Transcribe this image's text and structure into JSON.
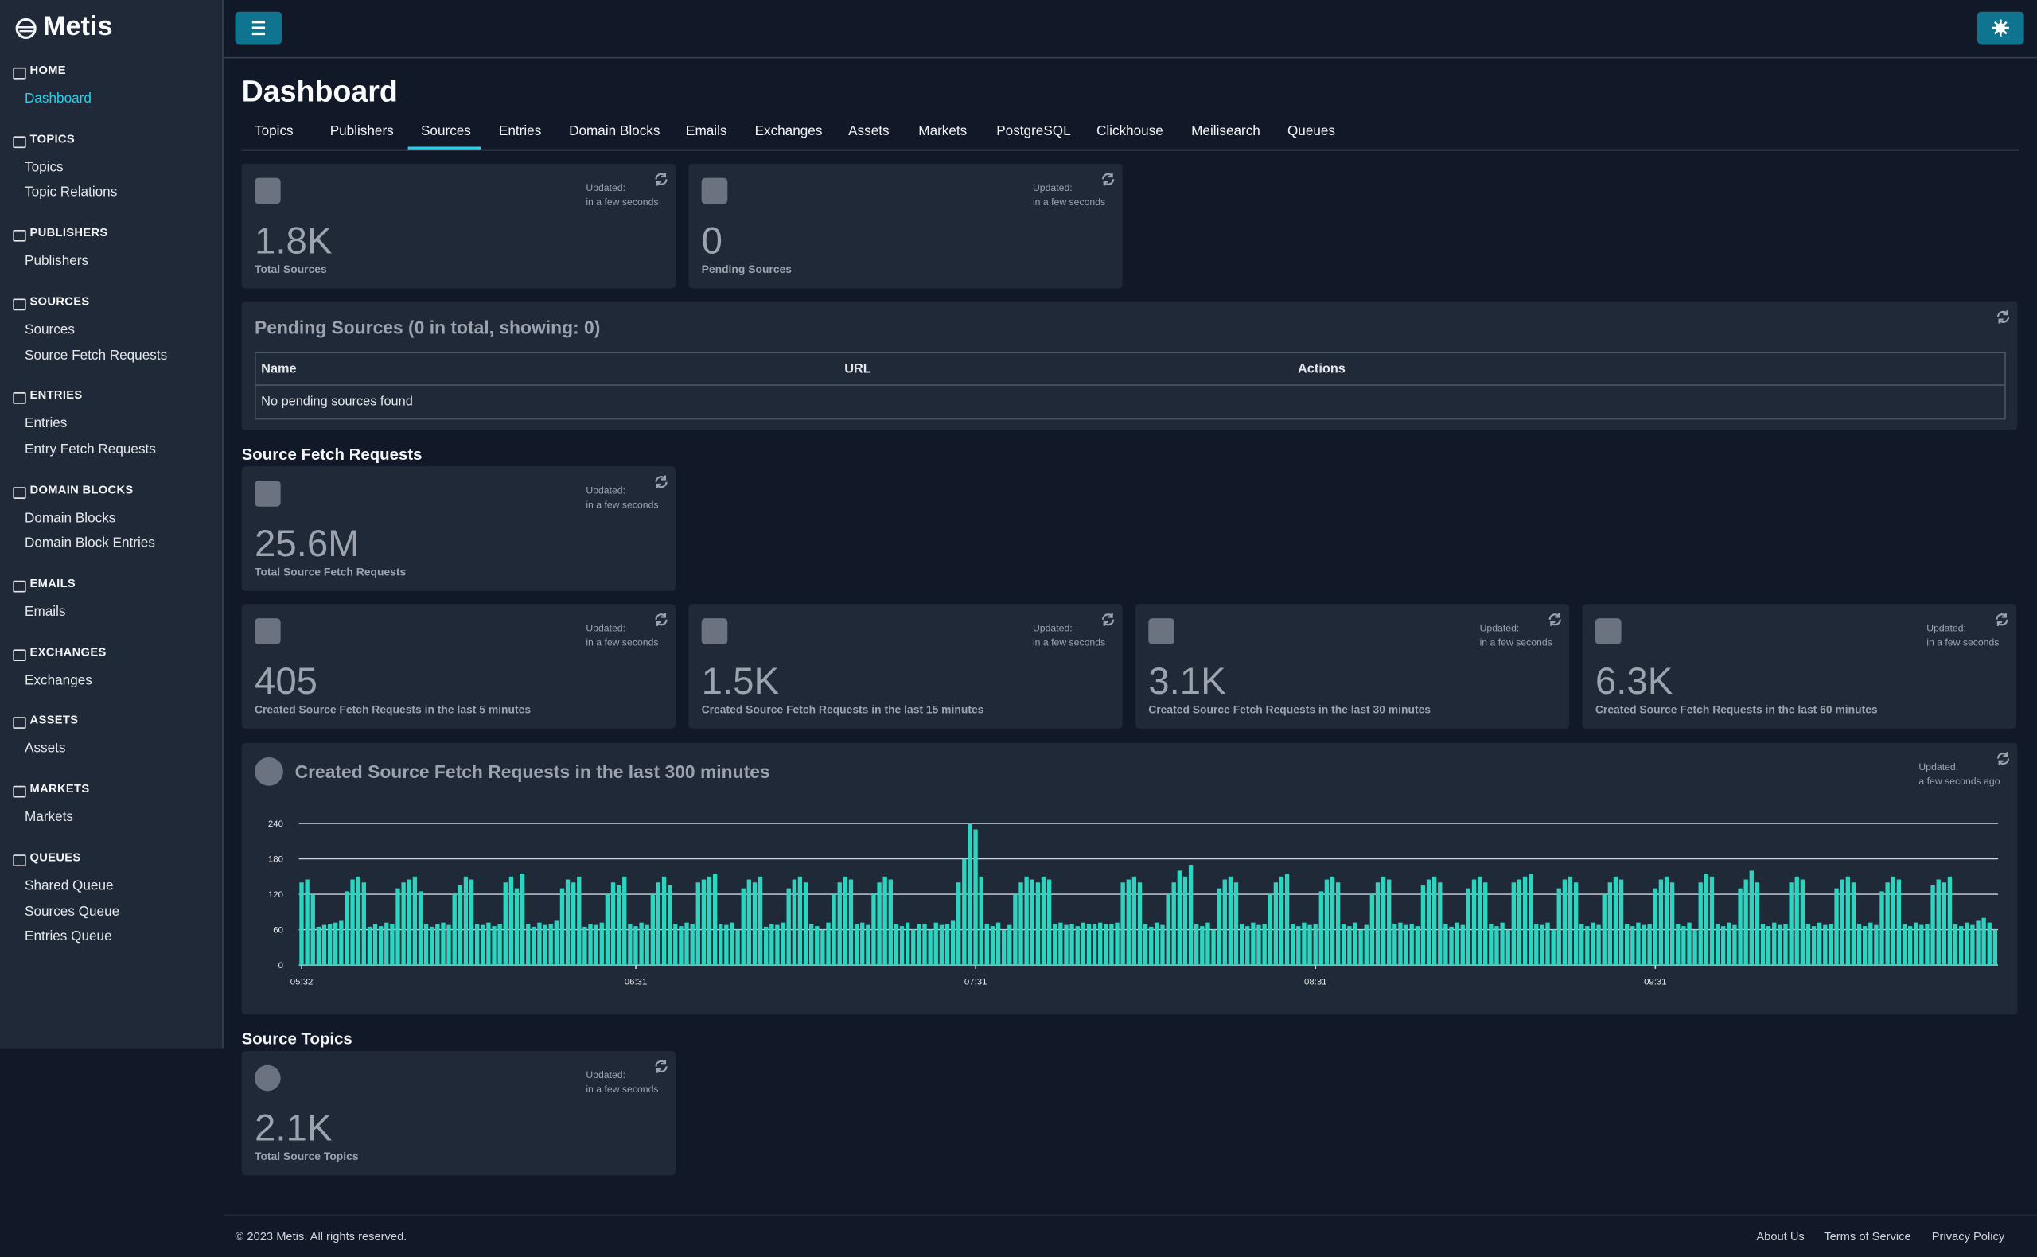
{
  "brand": "Metis",
  "sidebar": [
    {
      "section": "HOME",
      "links": [
        "Dashboard"
      ]
    },
    {
      "section": "TOPICS",
      "links": [
        "Topics",
        "Topic Relations"
      ]
    },
    {
      "section": "PUBLISHERS",
      "links": [
        "Publishers"
      ]
    },
    {
      "section": "SOURCES",
      "links": [
        "Sources",
        "Source Fetch Requests"
      ]
    },
    {
      "section": "ENTRIES",
      "links": [
        "Entries",
        "Entry Fetch Requests"
      ]
    },
    {
      "section": "DOMAIN BLOCKS",
      "links": [
        "Domain Blocks",
        "Domain Block Entries"
      ]
    },
    {
      "section": "EMAILS",
      "links": [
        "Emails"
      ]
    },
    {
      "section": "EXCHANGES",
      "links": [
        "Exchanges"
      ]
    },
    {
      "section": "ASSETS",
      "links": [
        "Assets"
      ]
    },
    {
      "section": "MARKETS",
      "links": [
        "Markets"
      ]
    },
    {
      "section": "QUEUES",
      "links": [
        "Shared Queue",
        "Sources Queue",
        "Entries Queue"
      ]
    }
  ],
  "page_title": "Dashboard",
  "tabs": [
    "Topics",
    "Publishers",
    "Sources",
    "Entries",
    "Domain Blocks",
    "Emails",
    "Exchanges",
    "Assets",
    "Markets",
    "PostgreSQL",
    "Clickhouse",
    "Meilisearch",
    "Queues"
  ],
  "cards": [
    {
      "value": "1.8K",
      "label": "Total Sources",
      "updated": "Updated:",
      "when": "in a few seconds"
    },
    {
      "value": "0",
      "label": "Pending Sources",
      "updated": "Updated:",
      "when": "in a few seconds"
    },
    {
      "value": "25.6M",
      "label": "Total Source Fetch Requests",
      "updated": "Updated:",
      "when": "in a few seconds"
    },
    {
      "value": "405",
      "label": "Created Source Fetch Requests in the last 5 minutes",
      "updated": "Updated:",
      "when": "in a few seconds"
    },
    {
      "value": "1.5K",
      "label": "Created Source Fetch Requests in the last 15 minutes",
      "updated": "Updated:",
      "when": "in a few seconds"
    },
    {
      "value": "3.1K",
      "label": "Created Source Fetch Requests in the last 30 minutes",
      "updated": "Updated:",
      "when": "in a few seconds"
    },
    {
      "value": "6.3K",
      "label": "Created Source Fetch Requests in the last 60 minutes",
      "updated": "Updated:",
      "when": "in a few seconds"
    },
    {
      "value": "2.1K",
      "label": "Total Source Topics",
      "updated": "Updated:",
      "when": "in a few seconds"
    }
  ],
  "pending_table": {
    "title": "Pending Sources (0 in total, showing: 0)",
    "columns": [
      "Name",
      "URL",
      "Actions"
    ],
    "empty": "No pending sources found"
  },
  "section_titles": [
    "Source Fetch Requests",
    "Source Topics"
  ],
  "chart_data": {
    "type": "bar",
    "title": "Created Source Fetch Requests in the last 300 minutes",
    "updated": "Updated:",
    "when": "a few seconds ago",
    "color": "#2dd4bf",
    "ylim": [
      0,
      240
    ],
    "yticks": [
      0,
      60,
      120,
      180,
      240
    ],
    "grid": true,
    "xticks": [
      {
        "value": 0,
        "label": "05:32"
      },
      {
        "value": 59,
        "label": "06:31"
      },
      {
        "value": 119,
        "label": "07:31"
      },
      {
        "value": 179,
        "label": "08:31"
      },
      {
        "value": 239,
        "label": "09:31"
      }
    ],
    "values": [
      140,
      145,
      120,
      65,
      68,
      70,
      72,
      75,
      125,
      145,
      150,
      140,
      65,
      70,
      66,
      72,
      70,
      130,
      140,
      145,
      150,
      125,
      70,
      65,
      70,
      72,
      68,
      120,
      135,
      150,
      145,
      70,
      68,
      72,
      66,
      70,
      140,
      150,
      130,
      155,
      70,
      65,
      72,
      68,
      70,
      75,
      130,
      145,
      140,
      150,
      65,
      70,
      68,
      72,
      120,
      140,
      135,
      150,
      70,
      66,
      72,
      68,
      120,
      140,
      150,
      135,
      70,
      66,
      72,
      70,
      140,
      145,
      150,
      155,
      70,
      68,
      72,
      60,
      130,
      145,
      140,
      150,
      65,
      70,
      68,
      72,
      130,
      145,
      150,
      140,
      70,
      66,
      60,
      72,
      120,
      140,
      150,
      145,
      70,
      72,
      68,
      122,
      140,
      150,
      145,
      70,
      66,
      72,
      60,
      70,
      70,
      60,
      72,
      68,
      70,
      75,
      140,
      180,
      240,
      230,
      150,
      70,
      66,
      72,
      60,
      68,
      120,
      140,
      150,
      145,
      140,
      150,
      145,
      70,
      72,
      68,
      70,
      66,
      72,
      70,
      70,
      72,
      70,
      70,
      72,
      140,
      145,
      150,
      140,
      70,
      65,
      72,
      68,
      120,
      140,
      160,
      150,
      170,
      70,
      66,
      72,
      60,
      130,
      145,
      150,
      140,
      70,
      66,
      72,
      68,
      70,
      120,
      140,
      150,
      155,
      70,
      66,
      72,
      68,
      70,
      125,
      145,
      150,
      140,
      70,
      66,
      72,
      60,
      68,
      120,
      140,
      150,
      145,
      70,
      72,
      68,
      70,
      66,
      135,
      145,
      150,
      140,
      70,
      65,
      72,
      68,
      130,
      145,
      150,
      140,
      70,
      66,
      72,
      60,
      140,
      145,
      150,
      155,
      70,
      68,
      72,
      60,
      130,
      145,
      150,
      140,
      70,
      66,
      72,
      68,
      120,
      140,
      150,
      145,
      70,
      66,
      72,
      68,
      70,
      130,
      145,
      150,
      140,
      70,
      66,
      72,
      60,
      140,
      155,
      150,
      70,
      66,
      72,
      68,
      130,
      145,
      160,
      140,
      70,
      66,
      72,
      68,
      70,
      140,
      150,
      145,
      70,
      66,
      72,
      68,
      70,
      130,
      145,
      150,
      140,
      70,
      66,
      72,
      68,
      125,
      140,
      150,
      145,
      70,
      66,
      72,
      68,
      70,
      135,
      145,
      140,
      150,
      70,
      66,
      72,
      68,
      75,
      80,
      72,
      60
    ]
  },
  "footer": {
    "copyright": "© 2023 Metis. All rights reserved.",
    "links": [
      "About Us",
      "Terms of Service",
      "Privacy Policy"
    ]
  }
}
